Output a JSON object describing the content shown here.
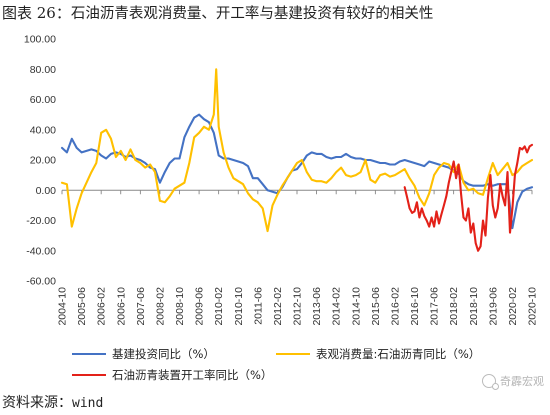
{
  "title": {
    "figure": "图表 26：",
    "text": "石油沥青表观消费量、开工率与基建投资有较好的相关性"
  },
  "source": {
    "label": "资料来源：",
    "value": "wind"
  },
  "watermark": {
    "icon": "wechat-icon",
    "text": "奇霹宏观"
  },
  "chart_data": {
    "type": "line",
    "title": "石油沥青表观消费量、开工率与基建投资有较好的相关性",
    "xlabel": "",
    "ylabel": "",
    "ylim": [
      -60,
      100
    ],
    "yticks": [
      "-60.00",
      "-40.00",
      "-20.00",
      "0.00",
      "20.00",
      "40.00",
      "60.00",
      "80.00",
      "100.00"
    ],
    "x_range": [
      "2004-10",
      "2020-10"
    ],
    "x_ticks": [
      "2004-10",
      "2005-06",
      "2006-02",
      "2006-10",
      "2007-06",
      "2008-02",
      "2008-10",
      "2009-06",
      "2010-02",
      "2010-10",
      "2011-06",
      "2012-02",
      "2012-10",
      "2013-06",
      "2014-02",
      "2014-10",
      "2015-06",
      "2016-02",
      "2016-10",
      "2017-06",
      "2018-02",
      "2018-10",
      "2019-06",
      "2020-02",
      "2020-10"
    ],
    "grid": false,
    "legend_position": "bottom",
    "series": [
      {
        "name": "基建投资同比（%）",
        "color": "#4472C4",
        "points": [
          [
            "2004-10",
            28
          ],
          [
            "2004-12",
            25
          ],
          [
            "2005-02",
            34
          ],
          [
            "2005-04",
            28
          ],
          [
            "2005-06",
            25
          ],
          [
            "2005-08",
            26
          ],
          [
            "2005-10",
            27
          ],
          [
            "2005-12",
            26
          ],
          [
            "2006-02",
            23
          ],
          [
            "2006-04",
            21
          ],
          [
            "2006-06",
            24
          ],
          [
            "2006-08",
            25
          ],
          [
            "2006-10",
            24
          ],
          [
            "2006-12",
            22
          ],
          [
            "2007-02",
            23
          ],
          [
            "2007-04",
            21
          ],
          [
            "2007-06",
            20
          ],
          [
            "2007-08",
            18
          ],
          [
            "2007-10",
            15
          ],
          [
            "2007-12",
            14
          ],
          [
            "2008-02",
            5
          ],
          [
            "2008-04",
            12
          ],
          [
            "2008-06",
            18
          ],
          [
            "2008-08",
            21
          ],
          [
            "2008-10",
            21
          ],
          [
            "2008-12",
            35
          ],
          [
            "2009-02",
            42
          ],
          [
            "2009-04",
            48
          ],
          [
            "2009-06",
            50
          ],
          [
            "2009-08",
            47
          ],
          [
            "2009-10",
            45
          ],
          [
            "2009-12",
            38
          ],
          [
            "2010-02",
            23
          ],
          [
            "2010-04",
            21
          ],
          [
            "2010-06",
            21
          ],
          [
            "2010-08",
            20
          ],
          [
            "2010-10",
            19
          ],
          [
            "2010-12",
            18
          ],
          [
            "2011-02",
            16
          ],
          [
            "2011-04",
            8
          ],
          [
            "2011-06",
            8
          ],
          [
            "2011-08",
            4
          ],
          [
            "2011-10",
            0
          ],
          [
            "2011-12",
            -1
          ],
          [
            "2012-02",
            -2
          ],
          [
            "2012-04",
            2
          ],
          [
            "2012-06",
            8
          ],
          [
            "2012-08",
            13
          ],
          [
            "2012-10",
            14
          ],
          [
            "2012-12",
            18
          ],
          [
            "2013-02",
            23
          ],
          [
            "2013-04",
            25
          ],
          [
            "2013-06",
            24
          ],
          [
            "2013-08",
            24
          ],
          [
            "2013-10",
            22
          ],
          [
            "2013-12",
            21
          ],
          [
            "2014-02",
            22
          ],
          [
            "2014-04",
            22
          ],
          [
            "2014-06",
            24
          ],
          [
            "2014-08",
            22
          ],
          [
            "2014-10",
            21
          ],
          [
            "2014-12",
            21
          ],
          [
            "2015-02",
            20
          ],
          [
            "2015-04",
            20
          ],
          [
            "2015-06",
            19
          ],
          [
            "2015-08",
            18
          ],
          [
            "2015-10",
            18
          ],
          [
            "2015-12",
            17
          ],
          [
            "2016-02",
            17
          ],
          [
            "2016-04",
            19
          ],
          [
            "2016-06",
            20
          ],
          [
            "2016-08",
            19
          ],
          [
            "2016-10",
            18
          ],
          [
            "2016-12",
            17
          ],
          [
            "2017-02",
            16
          ],
          [
            "2017-04",
            19
          ],
          [
            "2017-06",
            18
          ],
          [
            "2017-08",
            17
          ],
          [
            "2017-10",
            16
          ],
          [
            "2017-12",
            15
          ],
          [
            "2018-02",
            13
          ],
          [
            "2018-04",
            11
          ],
          [
            "2018-06",
            6
          ],
          [
            "2018-08",
            4
          ],
          [
            "2018-10",
            3
          ],
          [
            "2018-12",
            3
          ],
          [
            "2019-02",
            3
          ],
          [
            "2019-04",
            4
          ],
          [
            "2019-06",
            3
          ],
          [
            "2019-08",
            4
          ],
          [
            "2019-10",
            4
          ],
          [
            "2019-12",
            4
          ],
          [
            "2020-02",
            -25
          ],
          [
            "2020-04",
            -8
          ],
          [
            "2020-06",
            -1
          ],
          [
            "2020-08",
            1
          ],
          [
            "2020-10",
            2
          ]
        ]
      },
      {
        "name": "表观消费量:石油沥青同比（%）",
        "color": "#FFC000",
        "points": [
          [
            "2004-10",
            5
          ],
          [
            "2004-12",
            4
          ],
          [
            "2005-02",
            -24
          ],
          [
            "2005-04",
            -12
          ],
          [
            "2005-06",
            -2
          ],
          [
            "2005-08",
            5
          ],
          [
            "2005-10",
            12
          ],
          [
            "2005-12",
            18
          ],
          [
            "2006-02",
            38
          ],
          [
            "2006-04",
            40
          ],
          [
            "2006-06",
            34
          ],
          [
            "2006-08",
            22
          ],
          [
            "2006-10",
            26
          ],
          [
            "2006-12",
            20
          ],
          [
            "2007-02",
            27
          ],
          [
            "2007-04",
            20
          ],
          [
            "2007-06",
            18
          ],
          [
            "2007-08",
            15
          ],
          [
            "2007-10",
            17
          ],
          [
            "2007-12",
            12
          ],
          [
            "2008-02",
            -7
          ],
          [
            "2008-04",
            -8
          ],
          [
            "2008-06",
            -4
          ],
          [
            "2008-08",
            1
          ],
          [
            "2008-10",
            3
          ],
          [
            "2008-12",
            5
          ],
          [
            "2009-02",
            18
          ],
          [
            "2009-04",
            35
          ],
          [
            "2009-06",
            38
          ],
          [
            "2009-08",
            42
          ],
          [
            "2009-10",
            40
          ],
          [
            "2009-12",
            50
          ],
          [
            "2010-01",
            80
          ],
          [
            "2010-02",
            42
          ],
          [
            "2010-04",
            25
          ],
          [
            "2010-06",
            15
          ],
          [
            "2010-08",
            8
          ],
          [
            "2010-10",
            6
          ],
          [
            "2010-12",
            4
          ],
          [
            "2011-02",
            -2
          ],
          [
            "2011-04",
            -6
          ],
          [
            "2011-06",
            -8
          ],
          [
            "2011-08",
            -12
          ],
          [
            "2011-10",
            -27
          ],
          [
            "2011-12",
            -10
          ],
          [
            "2012-02",
            -3
          ],
          [
            "2012-04",
            3
          ],
          [
            "2012-06",
            8
          ],
          [
            "2012-08",
            13
          ],
          [
            "2012-10",
            18
          ],
          [
            "2012-12",
            20
          ],
          [
            "2013-02",
            12
          ],
          [
            "2013-04",
            7
          ],
          [
            "2013-06",
            6
          ],
          [
            "2013-08",
            6
          ],
          [
            "2013-10",
            5
          ],
          [
            "2013-12",
            8
          ],
          [
            "2014-02",
            12
          ],
          [
            "2014-04",
            15
          ],
          [
            "2014-06",
            10
          ],
          [
            "2014-08",
            9
          ],
          [
            "2014-10",
            10
          ],
          [
            "2014-12",
            12
          ],
          [
            "2015-02",
            20
          ],
          [
            "2015-04",
            7
          ],
          [
            "2015-06",
            5
          ],
          [
            "2015-08",
            10
          ],
          [
            "2015-10",
            11
          ],
          [
            "2015-12",
            9
          ],
          [
            "2016-02",
            10
          ],
          [
            "2016-04",
            12
          ],
          [
            "2016-06",
            14
          ],
          [
            "2016-08",
            8
          ],
          [
            "2016-10",
            3
          ],
          [
            "2016-12",
            -5
          ],
          [
            "2017-02",
            -10
          ],
          [
            "2017-04",
            -2
          ],
          [
            "2017-06",
            10
          ],
          [
            "2017-08",
            15
          ],
          [
            "2017-10",
            18
          ],
          [
            "2017-12",
            17
          ],
          [
            "2018-02",
            12
          ],
          [
            "2018-04",
            17
          ],
          [
            "2018-06",
            5
          ],
          [
            "2018-08",
            0
          ],
          [
            "2018-10",
            1
          ],
          [
            "2018-12",
            -2
          ],
          [
            "2019-02",
            -3
          ],
          [
            "2019-04",
            8
          ],
          [
            "2019-06",
            18
          ],
          [
            "2019-08",
            10
          ],
          [
            "2019-10",
            14
          ],
          [
            "2019-12",
            18
          ],
          [
            "2020-02",
            10
          ],
          [
            "2020-04",
            12
          ],
          [
            "2020-06",
            16
          ],
          [
            "2020-08",
            18
          ],
          [
            "2020-10",
            20
          ]
        ]
      },
      {
        "name": "石油沥青装置开工率同比（%）",
        "color": "#E32119",
        "points": [
          [
            "2016-06",
            2
          ],
          [
            "2016-07",
            -5
          ],
          [
            "2016-08",
            -12
          ],
          [
            "2016-09",
            -15
          ],
          [
            "2016-10",
            -14
          ],
          [
            "2016-11",
            -8
          ],
          [
            "2016-12",
            -18
          ],
          [
            "2017-01",
            -12
          ],
          [
            "2017-02",
            -17
          ],
          [
            "2017-03",
            -20
          ],
          [
            "2017-04",
            -24
          ],
          [
            "2017-05",
            -18
          ],
          [
            "2017-06",
            -24
          ],
          [
            "2017-07",
            -14
          ],
          [
            "2017-08",
            -22
          ],
          [
            "2017-09",
            -16
          ],
          [
            "2017-10",
            -10
          ],
          [
            "2017-11",
            -4
          ],
          [
            "2017-12",
            5
          ],
          [
            "2018-01",
            12
          ],
          [
            "2018-02",
            19
          ],
          [
            "2018-03",
            8
          ],
          [
            "2018-04",
            17
          ],
          [
            "2018-05",
            -2
          ],
          [
            "2018-06",
            -18
          ],
          [
            "2018-07",
            -20
          ],
          [
            "2018-08",
            -12
          ],
          [
            "2018-09",
            -28
          ],
          [
            "2018-10",
            -22
          ],
          [
            "2018-11",
            -35
          ],
          [
            "2018-12",
            -40
          ],
          [
            "2019-01",
            -37
          ],
          [
            "2019-02",
            -20
          ],
          [
            "2019-03",
            -30
          ],
          [
            "2019-04",
            -5
          ],
          [
            "2019-05",
            10
          ],
          [
            "2019-06",
            -10
          ],
          [
            "2019-07",
            -18
          ],
          [
            "2019-08",
            -12
          ],
          [
            "2019-09",
            4
          ],
          [
            "2019-10",
            -4
          ],
          [
            "2019-11",
            -10
          ],
          [
            "2019-12",
            12
          ],
          [
            "2020-01",
            -28
          ],
          [
            "2020-02",
            -12
          ],
          [
            "2020-03",
            10
          ],
          [
            "2020-04",
            18
          ],
          [
            "2020-05",
            28
          ],
          [
            "2020-06",
            27
          ],
          [
            "2020-07",
            29
          ],
          [
            "2020-08",
            25
          ],
          [
            "2020-09",
            29
          ],
          [
            "2020-10",
            30
          ]
        ]
      }
    ]
  }
}
